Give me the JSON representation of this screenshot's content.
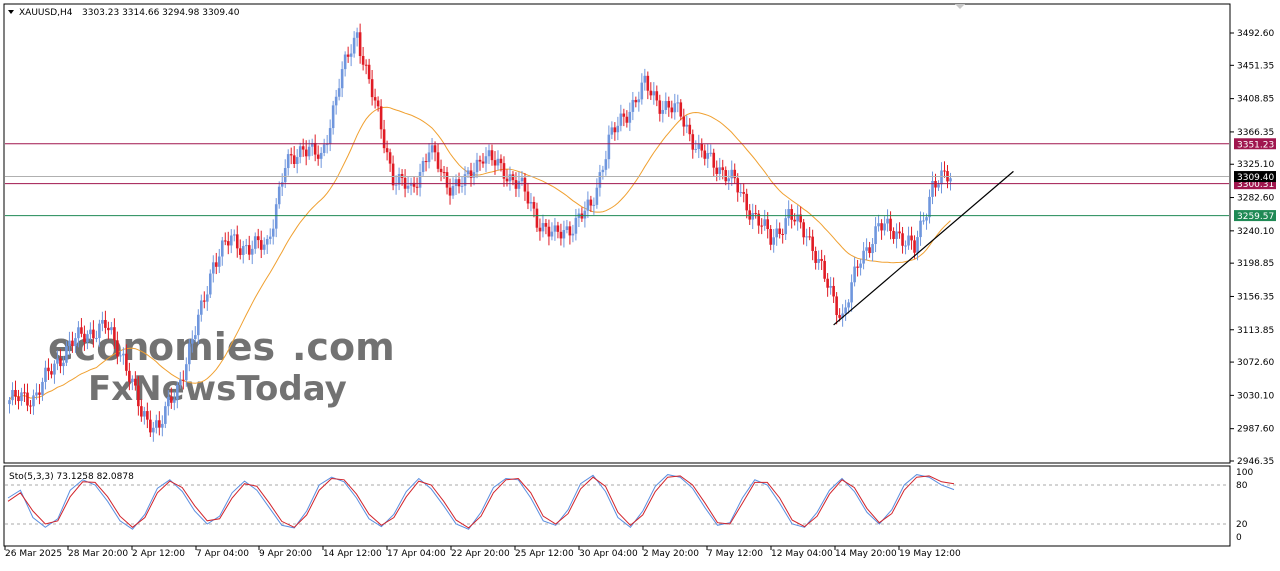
{
  "header": {
    "symbol": "XAUUSD,H4",
    "ohlc": "3303.23 3314.66 3294.98 3309.40",
    "collapse_icon": "triangle-down-icon"
  },
  "watermark": {
    "line1_a": "econ",
    "line1_b": "omies",
    "line1_c": ".com",
    "line2": "FxNewsToday"
  },
  "colors": {
    "bull": "#6f96dd",
    "bear": "#e01b24",
    "ma": "#f0a030",
    "resistance": "#a0164e",
    "support": "#1f8a55",
    "trend": "#000000",
    "stoch_main": "#5b8fe0",
    "stoch_signal": "#d2232a"
  },
  "chart_data": [
    {
      "type": "candlestick",
      "title": "XAUUSD,H4",
      "y_ticks": [
        "3492.60",
        "3451.35",
        "3408.85",
        "3366.35",
        "3325.10",
        "3282.60",
        "3240.10",
        "3198.85",
        "3156.35",
        "3113.85",
        "3072.60",
        "3030.10",
        "2987.60",
        "2946.35"
      ],
      "ylim": [
        2946.35,
        3510
      ],
      "x_ticks": [
        "26 Mar 2025",
        "28 Mar 20:00",
        "2 Apr 12:00",
        "7 Apr 04:00",
        "9 Apr 20:00",
        "14 Apr 12:00",
        "17 Apr 04:00",
        "22 Apr 20:00",
        "25 Apr 12:00",
        "30 Apr 04:00",
        "2 May 20:00",
        "7 May 12:00",
        "12 May 04:00",
        "14 May 20:00",
        "19 May 12:00"
      ],
      "path_points": [
        [
          0,
          3024
        ],
        [
          8,
          3028
        ],
        [
          14,
          3062
        ],
        [
          20,
          3095
        ],
        [
          26,
          3110
        ],
        [
          32,
          3118
        ],
        [
          38,
          3080
        ],
        [
          44,
          3005
        ],
        [
          50,
          2990
        ],
        [
          56,
          3040
        ],
        [
          62,
          3110
        ],
        [
          68,
          3200
        ],
        [
          74,
          3230
        ],
        [
          80,
          3216
        ],
        [
          86,
          3225
        ],
        [
          92,
          3320
        ],
        [
          98,
          3350
        ],
        [
          104,
          3330
        ],
        [
          110,
          3430
        ],
        [
          116,
          3492
        ],
        [
          122,
          3400
        ],
        [
          128,
          3310
        ],
        [
          134,
          3290
        ],
        [
          140,
          3345
        ],
        [
          146,
          3300
        ],
        [
          152,
          3300
        ],
        [
          158,
          3340
        ],
        [
          164,
          3318
        ],
        [
          170,
          3302
        ],
        [
          176,
          3255
        ],
        [
          182,
          3232
        ],
        [
          188,
          3248
        ],
        [
          194,
          3270
        ],
        [
          200,
          3355
        ],
        [
          206,
          3392
        ],
        [
          212,
          3425
        ],
        [
          218,
          3400
        ],
        [
          224,
          3390
        ],
        [
          230,
          3340
        ],
        [
          236,
          3325
        ],
        [
          242,
          3300
        ],
        [
          248,
          3262
        ],
        [
          254,
          3230
        ],
        [
          260,
          3258
        ],
        [
          266,
          3240
        ],
        [
          272,
          3178
        ],
        [
          278,
          3130
        ],
        [
          284,
          3205
        ],
        [
          290,
          3245
        ],
        [
          296,
          3240
        ],
        [
          302,
          3215
        ],
        [
          308,
          3300
        ],
        [
          314,
          3309
        ]
      ],
      "horizontal_levels": [
        {
          "value": 3351.23,
          "label": "3351.23",
          "kind": "resistance"
        },
        {
          "value": 3300.31,
          "label": "3300.31",
          "kind": "resistance"
        },
        {
          "value": 3259.57,
          "label": "3259.57",
          "kind": "support"
        }
      ],
      "last_price": {
        "value": 3309.4,
        "label": "3309.40"
      },
      "trendline": {
        "start": [
          3120,
          275
        ],
        "end": [
          3316,
          335
        ]
      }
    },
    {
      "type": "line",
      "title": "Sto(5,3,3) 73.1258 82.0878",
      "indicator": "Sto(5,3,3)",
      "values": [
        "73.1258",
        "82.0878"
      ],
      "ylim": [
        0,
        100
      ],
      "y_ticks": [
        "100",
        "80",
        "20",
        "0"
      ],
      "levels": [
        80,
        20
      ],
      "series": [
        {
          "values": [
            60,
            72,
            30,
            15,
            28,
            72,
            88,
            80,
            55,
            25,
            12,
            35,
            75,
            88,
            70,
            40,
            20,
            32,
            68,
            86,
            72,
            45,
            18,
            14,
            40,
            80,
            92,
            85,
            60,
            28,
            16,
            35,
            70,
            90,
            74,
            48,
            20,
            12,
            38,
            76,
            90,
            88,
            60,
            25,
            18,
            42,
            82,
            95,
            70,
            30,
            15,
            40,
            78,
            96,
            92,
            75,
            45,
            18,
            22,
            60,
            88,
            80,
            52,
            20,
            15,
            38,
            72,
            90,
            70,
            38,
            20,
            42,
            80,
            96,
            92,
            80,
            73
          ]
        },
        {
          "values": [
            55,
            68,
            40,
            20,
            25,
            62,
            85,
            84,
            62,
            32,
            15,
            30,
            68,
            86,
            76,
            48,
            25,
            28,
            60,
            82,
            78,
            52,
            24,
            15,
            34,
            72,
            90,
            88,
            66,
            35,
            18,
            30,
            62,
            86,
            80,
            55,
            26,
            14,
            32,
            68,
            88,
            90,
            68,
            32,
            20,
            36,
            74,
            92,
            78,
            38,
            18,
            34,
            70,
            92,
            94,
            80,
            52,
            22,
            20,
            52,
            84,
            84,
            60,
            26,
            16,
            32,
            66,
            88,
            76,
            44,
            22,
            36,
            72,
            92,
            94,
            85,
            82
          ]
        }
      ]
    }
  ]
}
